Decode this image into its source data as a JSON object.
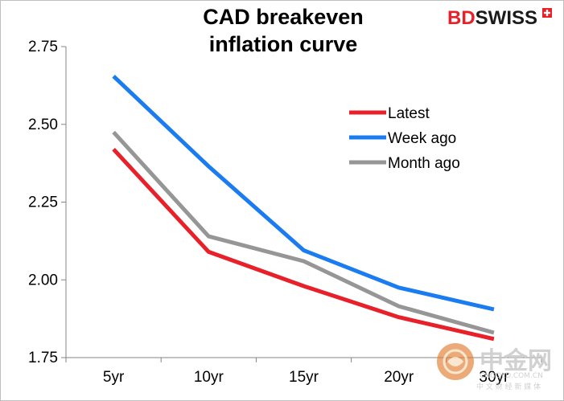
{
  "chart_data": {
    "type": "line",
    "title": [
      "CAD breakeven",
      "inflation curve"
    ],
    "categories": [
      "5yr",
      "10yr",
      "15yr",
      "20yr",
      "30yr"
    ],
    "ylim": [
      1.75,
      2.75
    ],
    "yticks": [
      1.75,
      2.0,
      2.25,
      2.5,
      2.75
    ],
    "ytick_labels": [
      "1.75",
      "2.00",
      "2.25",
      "2.50",
      "2.75"
    ],
    "grid": false,
    "legend_position": "upper-right",
    "series": [
      {
        "name": "Latest",
        "color": "#e8202a",
        "values": [
          2.42,
          2.09,
          1.98,
          1.88,
          1.81
        ]
      },
      {
        "name": "Week ago",
        "color": "#1a7cf0",
        "values": [
          2.655,
          2.365,
          2.095,
          1.975,
          1.905
        ]
      },
      {
        "name": "Month ago",
        "color": "#969696",
        "values": [
          2.475,
          2.14,
          2.06,
          1.915,
          1.83
        ]
      }
    ]
  },
  "brand": {
    "logo_bd": "BD",
    "logo_swiss": "SWISS",
    "bd_color": "#e8202a",
    "swiss_color": "#1a1a1a"
  },
  "watermark": {
    "name": "中金网",
    "domain": "CNGOLD.COM.CN",
    "tagline": "中 文 财 经 新 媒 体"
  }
}
